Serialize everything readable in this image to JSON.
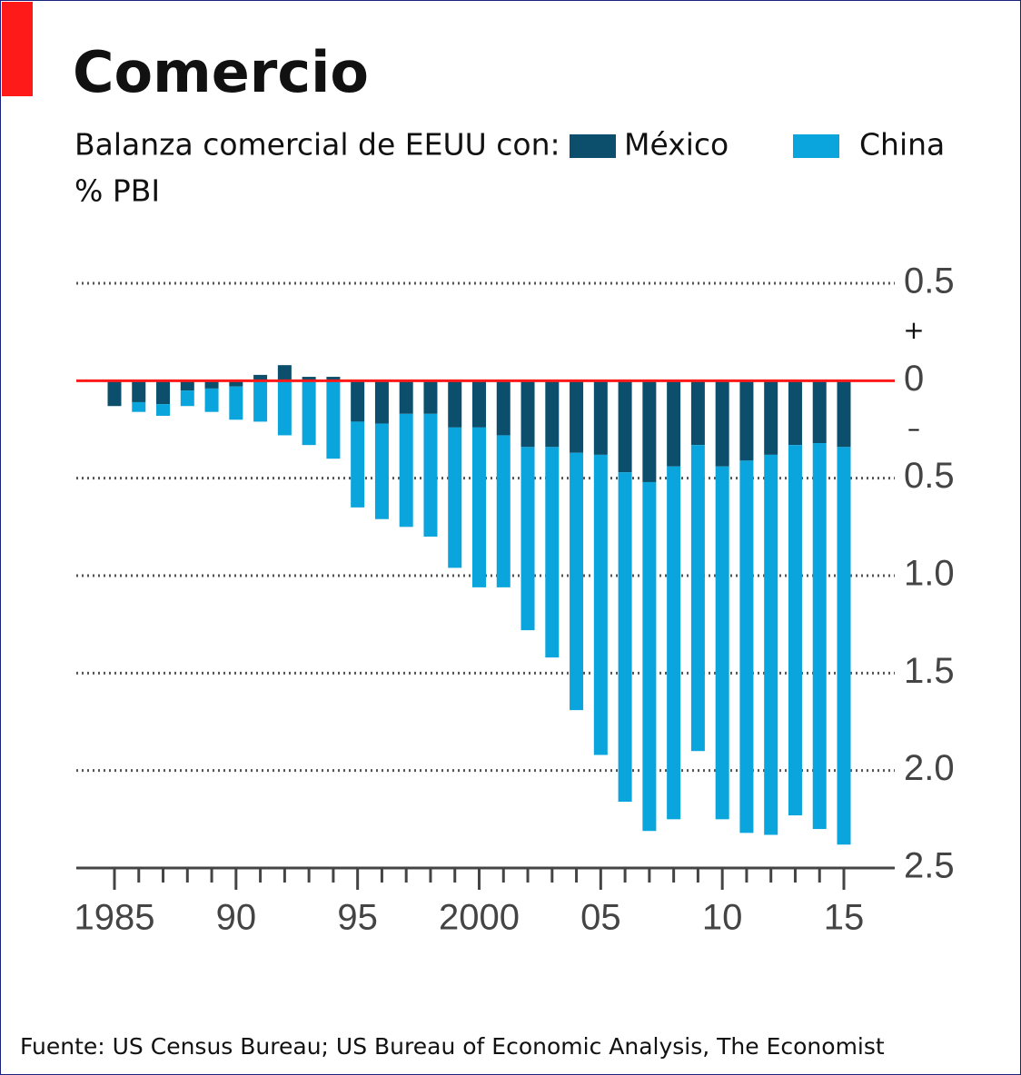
{
  "chart_data": {
    "type": "stacked_bar",
    "title": "Comercio",
    "subtitle": "Balanza comercial de EEUU con:",
    "unit_label": "% PBI",
    "source": "Fuente: US Census Bureau; US Bureau of Economic Analysis, The Economist",
    "annotations": [
      "+",
      "–"
    ],
    "categories": [
      "1985",
      null,
      null,
      null,
      null,
      "90",
      null,
      null,
      null,
      null,
      "95",
      null,
      null,
      null,
      null,
      "2000",
      null,
      null,
      null,
      null,
      "05",
      null,
      null,
      null,
      null,
      "10",
      null,
      null,
      null,
      null,
      "15"
    ],
    "series": [
      {
        "name": "México",
        "color": "#0b4f6c",
        "values": [
          -0.13,
          -0.11,
          -0.12,
          -0.05,
          -0.04,
          -0.03,
          0.03,
          0.08,
          0.02,
          0.02,
          -0.21,
          -0.22,
          -0.17,
          -0.17,
          -0.24,
          -0.24,
          -0.28,
          -0.34,
          -0.34,
          -0.37,
          -0.38,
          -0.47,
          -0.52,
          -0.44,
          -0.33,
          -0.44,
          -0.41,
          -0.38,
          -0.33,
          -0.32,
          -0.34
        ]
      },
      {
        "name": "China",
        "color": "#0aa5dc",
        "values": [
          0,
          -0.05,
          -0.06,
          -0.08,
          -0.12,
          -0.17,
          -0.21,
          -0.28,
          -0.33,
          -0.4,
          -0.44,
          -0.49,
          -0.58,
          -0.63,
          -0.72,
          -0.82,
          -0.78,
          -0.94,
          -1.08,
          -1.32,
          -1.54,
          -1.69,
          -1.79,
          -1.81,
          -1.57,
          -1.81,
          -1.91,
          -1.95,
          -1.9,
          -1.98,
          -2.04
        ]
      }
    ],
    "ylim": [
      -2.5,
      0.5
    ],
    "yticks": [
      {
        "value": 0.5,
        "label": "0.5"
      },
      0,
      {
        "value": -0.5,
        "label": "0.5"
      },
      {
        "value": -1,
        "label": "1.0"
      },
      {
        "value": -1.5,
        "label": "1.5"
      },
      {
        "value": -2,
        "label": "2.0"
      },
      {
        "value": -2.5,
        "label": "2.5"
      }
    ],
    "grid": true,
    "zero_line_color": "#ff1a1a"
  }
}
